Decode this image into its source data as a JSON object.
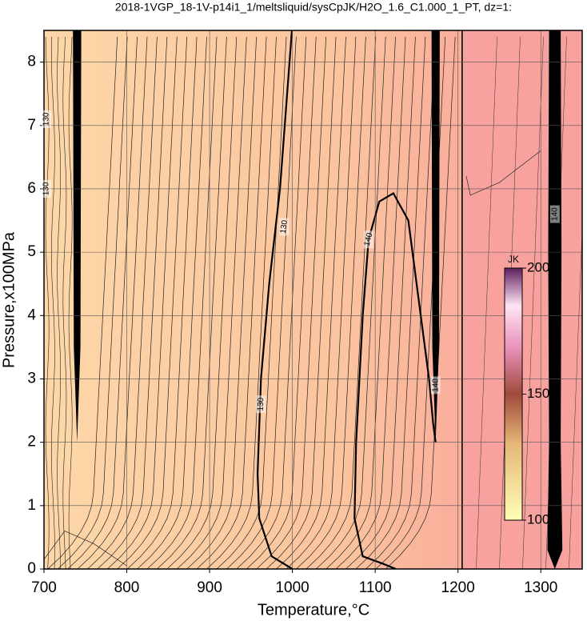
{
  "chart_data": {
    "type": "contour",
    "title": "2018-1VGP_18-1V-p14i1_1/meltsliquid/sysCpJK/H2O_1.6_C1.000_1_PT, dz=1:",
    "x_label": "Temperature,°C",
    "y_label": "Pressure,x100MPa",
    "xlim": [
      700,
      1350
    ],
    "ylim": [
      0,
      8.5
    ],
    "xticks": [
      700,
      800,
      900,
      1000,
      1100,
      1200,
      1300
    ],
    "yticks": [
      0,
      1,
      2,
      3,
      4,
      5,
      6,
      7,
      8
    ],
    "grid": true,
    "contour_labels": [
      130,
      130,
      140,
      140,
      130,
      130,
      140
    ],
    "colorbar": {
      "label": "JK",
      "lim": [
        100,
        200
      ],
      "ticks": [
        100,
        150,
        200
      ]
    }
  }
}
